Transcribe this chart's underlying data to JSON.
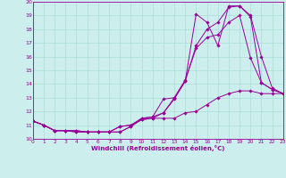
{
  "xlabel": "Windchill (Refroidissement éolien,°C)",
  "bg_color": "#cceeed",
  "line_color": "#990099",
  "grid_color": "#aadddd",
  "xlim": [
    0,
    23
  ],
  "ylim": [
    10,
    20
  ],
  "xticks": [
    0,
    1,
    2,
    3,
    4,
    5,
    6,
    7,
    8,
    9,
    10,
    11,
    12,
    13,
    14,
    15,
    16,
    17,
    18,
    19,
    20,
    21,
    22,
    23
  ],
  "yticks": [
    10,
    11,
    12,
    13,
    14,
    15,
    16,
    17,
    18,
    19,
    20
  ],
  "lines": [
    {
      "x": [
        0,
        1,
        2,
        3,
        4,
        5,
        6,
        7,
        8,
        9,
        10,
        11,
        12,
        13,
        14,
        15,
        16,
        17,
        18,
        19,
        20,
        21,
        22,
        23
      ],
      "y": [
        11.3,
        11.0,
        10.6,
        10.6,
        10.6,
        10.5,
        10.5,
        10.5,
        10.5,
        10.9,
        11.5,
        11.6,
        12.9,
        13.0,
        14.2,
        19.1,
        18.5,
        16.8,
        19.7,
        19.7,
        18.9,
        14.1,
        13.6,
        13.3
      ]
    },
    {
      "x": [
        0,
        1,
        2,
        3,
        4,
        5,
        6,
        7,
        8,
        9,
        10,
        11,
        12,
        13,
        14,
        15,
        16,
        17,
        18,
        19,
        20,
        21,
        22,
        23
      ],
      "y": [
        11.3,
        11.0,
        10.6,
        10.6,
        10.6,
        10.5,
        10.5,
        10.5,
        10.5,
        10.9,
        11.4,
        11.5,
        11.9,
        12.9,
        14.2,
        16.8,
        18.0,
        18.5,
        19.6,
        19.7,
        19.0,
        16.0,
        13.7,
        13.3
      ]
    },
    {
      "x": [
        0,
        1,
        2,
        3,
        4,
        5,
        6,
        7,
        8,
        9,
        10,
        11,
        12,
        13,
        14,
        15,
        16,
        17,
        18,
        19,
        20,
        21,
        22,
        23
      ],
      "y": [
        11.3,
        11.0,
        10.6,
        10.6,
        10.5,
        10.5,
        10.5,
        10.5,
        10.9,
        11.0,
        11.5,
        11.6,
        11.9,
        13.0,
        14.3,
        16.6,
        17.4,
        17.6,
        18.5,
        19.0,
        15.9,
        14.1,
        13.6,
        13.3
      ]
    },
    {
      "x": [
        0,
        1,
        2,
        3,
        4,
        5,
        6,
        7,
        8,
        9,
        10,
        11,
        12,
        13,
        14,
        15,
        16,
        17,
        18,
        19,
        20,
        21,
        22,
        23
      ],
      "y": [
        11.3,
        11.0,
        10.6,
        10.6,
        10.5,
        10.5,
        10.5,
        10.5,
        10.9,
        11.0,
        11.4,
        11.5,
        11.5,
        11.5,
        11.9,
        12.0,
        12.5,
        13.0,
        13.3,
        13.5,
        13.5,
        13.3,
        13.3,
        13.3
      ]
    }
  ]
}
